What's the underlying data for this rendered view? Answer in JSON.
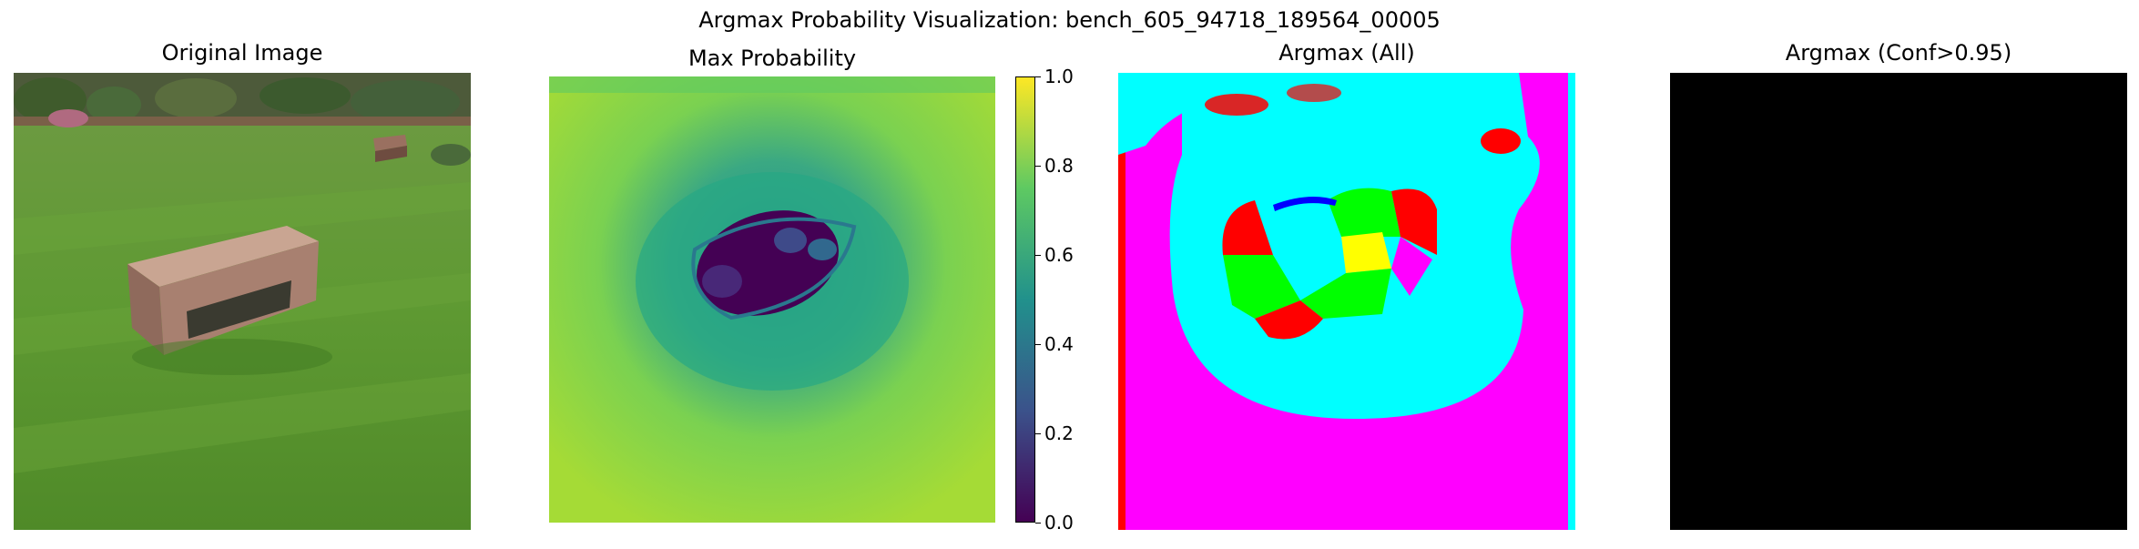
{
  "figure": {
    "suptitle": "Argmax Probability Visualization: bench_605_94718_189564_00005"
  },
  "panels": [
    {
      "title": "Original Image"
    },
    {
      "title": "Max Probability"
    },
    {
      "title": "Argmax (All)"
    },
    {
      "title": "Argmax (Conf>0.95)"
    }
  ],
  "colorbar": {
    "colormap": "viridis",
    "range": [
      0.0,
      1.0
    ],
    "ticks": [
      "0.0",
      "0.2",
      "0.4",
      "0.6",
      "0.8",
      "1.0"
    ]
  },
  "argmax_colors": [
    "#ff00ff",
    "#00ffff",
    "#ff0000",
    "#00ff00",
    "#ffff00",
    "#0000ff"
  ],
  "conf_panel_color": "#000000"
}
